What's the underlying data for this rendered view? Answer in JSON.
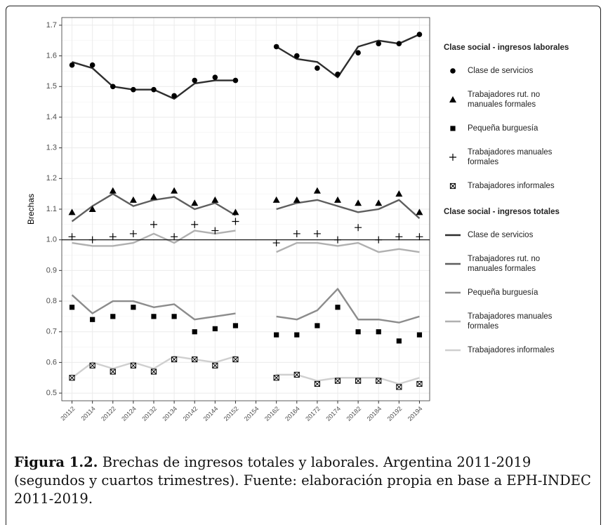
{
  "chart_data": {
    "type": "line",
    "y_label": "Brechas",
    "categories": [
      "20112",
      "20114",
      "20122",
      "20124",
      "20132",
      "20134",
      "20142",
      "20144",
      "20152",
      "20154",
      "20162",
      "20164",
      "20172",
      "20174",
      "20182",
      "20184",
      "20192",
      "20194"
    ],
    "ylim": [
      0.475,
      1.725
    ],
    "yticks": [
      0.5,
      0.6,
      0.7,
      0.8,
      0.9,
      {
        "value": 1,
        "label": "1.0"
      },
      1.1,
      1.2,
      1.3,
      1.4,
      1.5,
      1.6,
      1.7
    ],
    "grid": true,
    "reference_line": 1,
    "groups": [
      {
        "title": "Clase social - ingresos laborales",
        "mark": "point",
        "series": [
          {
            "name": "Clase de servicios",
            "shape": "circle",
            "color": "#000000",
            "values": [
              1.57,
              1.57,
              1.5,
              1.49,
              1.49,
              1.47,
              1.52,
              1.53,
              1.52,
              null,
              1.63,
              1.6,
              1.56,
              1.54,
              1.61,
              1.64,
              1.64,
              1.67
            ]
          },
          {
            "name": "Trabajadores rut. no manuales formales",
            "shape": "triangle",
            "color": "#000000",
            "values": [
              1.09,
              1.1,
              1.16,
              1.13,
              1.14,
              1.16,
              1.12,
              1.13,
              1.09,
              null,
              1.13,
              1.13,
              1.16,
              1.13,
              1.12,
              1.12,
              1.15,
              1.09
            ]
          },
          {
            "name": "Pequeña burguesía",
            "shape": "square",
            "color": "#000000",
            "values": [
              0.78,
              0.74,
              0.75,
              0.78,
              0.75,
              0.75,
              0.7,
              0.71,
              0.72,
              null,
              0.69,
              0.69,
              0.72,
              0.78,
              0.7,
              0.7,
              0.67,
              0.69
            ]
          },
          {
            "name": "Trabajadores manuales formales",
            "shape": "plus",
            "color": "#000000",
            "values": [
              1.01,
              1.0,
              1.01,
              1.02,
              1.05,
              1.01,
              1.05,
              1.03,
              1.06,
              null,
              0.99,
              1.02,
              1.02,
              1.0,
              1.04,
              1.0,
              1.01,
              1.01
            ]
          },
          {
            "name": "Trabajadores informales",
            "shape": "boxed-x",
            "color": "#000000",
            "values": [
              0.55,
              0.59,
              0.57,
              0.59,
              0.57,
              0.61,
              0.61,
              0.59,
              0.61,
              null,
              0.55,
              0.56,
              0.53,
              0.54,
              0.54,
              0.54,
              0.52,
              0.53
            ]
          }
        ]
      },
      {
        "title": "Clase social - ingresos totales",
        "mark": "line",
        "series": [
          {
            "name": "Clase de servicios",
            "color": "#2e2e2e",
            "values": [
              1.58,
              1.56,
              1.5,
              1.49,
              1.49,
              1.46,
              1.51,
              1.52,
              1.52,
              null,
              1.63,
              1.59,
              1.58,
              1.53,
              1.63,
              1.65,
              1.64,
              1.67
            ]
          },
          {
            "name": "Trabajadores rut. no manuales formales",
            "color": "#5e5e5e",
            "values": [
              1.06,
              1.11,
              1.15,
              1.11,
              1.13,
              1.14,
              1.1,
              1.12,
              1.08,
              null,
              1.1,
              1.12,
              1.13,
              1.11,
              1.09,
              1.1,
              1.13,
              1.07
            ]
          },
          {
            "name": "Pequeña burguesía",
            "color": "#8c8c8c",
            "values": [
              0.82,
              0.76,
              0.8,
              0.8,
              0.78,
              0.79,
              0.74,
              0.75,
              0.76,
              null,
              0.75,
              0.74,
              0.77,
              0.84,
              0.74,
              0.74,
              0.73,
              0.75
            ]
          },
          {
            "name": "Trabajadores manuales formales",
            "color": "#b0b0b0",
            "values": [
              0.99,
              0.98,
              0.98,
              0.99,
              1.02,
              0.99,
              1.03,
              1.02,
              1.03,
              null,
              0.96,
              0.99,
              0.99,
              0.98,
              0.99,
              0.96,
              0.97,
              0.96
            ]
          },
          {
            "name": "Trabajadores informales",
            "color": "#cfcfcf",
            "values": [
              0.55,
              0.6,
              0.58,
              0.6,
              0.58,
              0.62,
              0.61,
              0.6,
              0.62,
              null,
              0.56,
              0.56,
              0.54,
              0.55,
              0.55,
              0.55,
              0.53,
              0.55
            ]
          }
        ]
      }
    ]
  },
  "caption": {
    "label": "Figura 1.2.",
    "text": "Brechas de ingresos totales y laborales. Argentina 2011-2019 (segundos y cuartos trimestres). Fuente: elaboración propia en base a EPH-INDEC 2011-2019."
  }
}
